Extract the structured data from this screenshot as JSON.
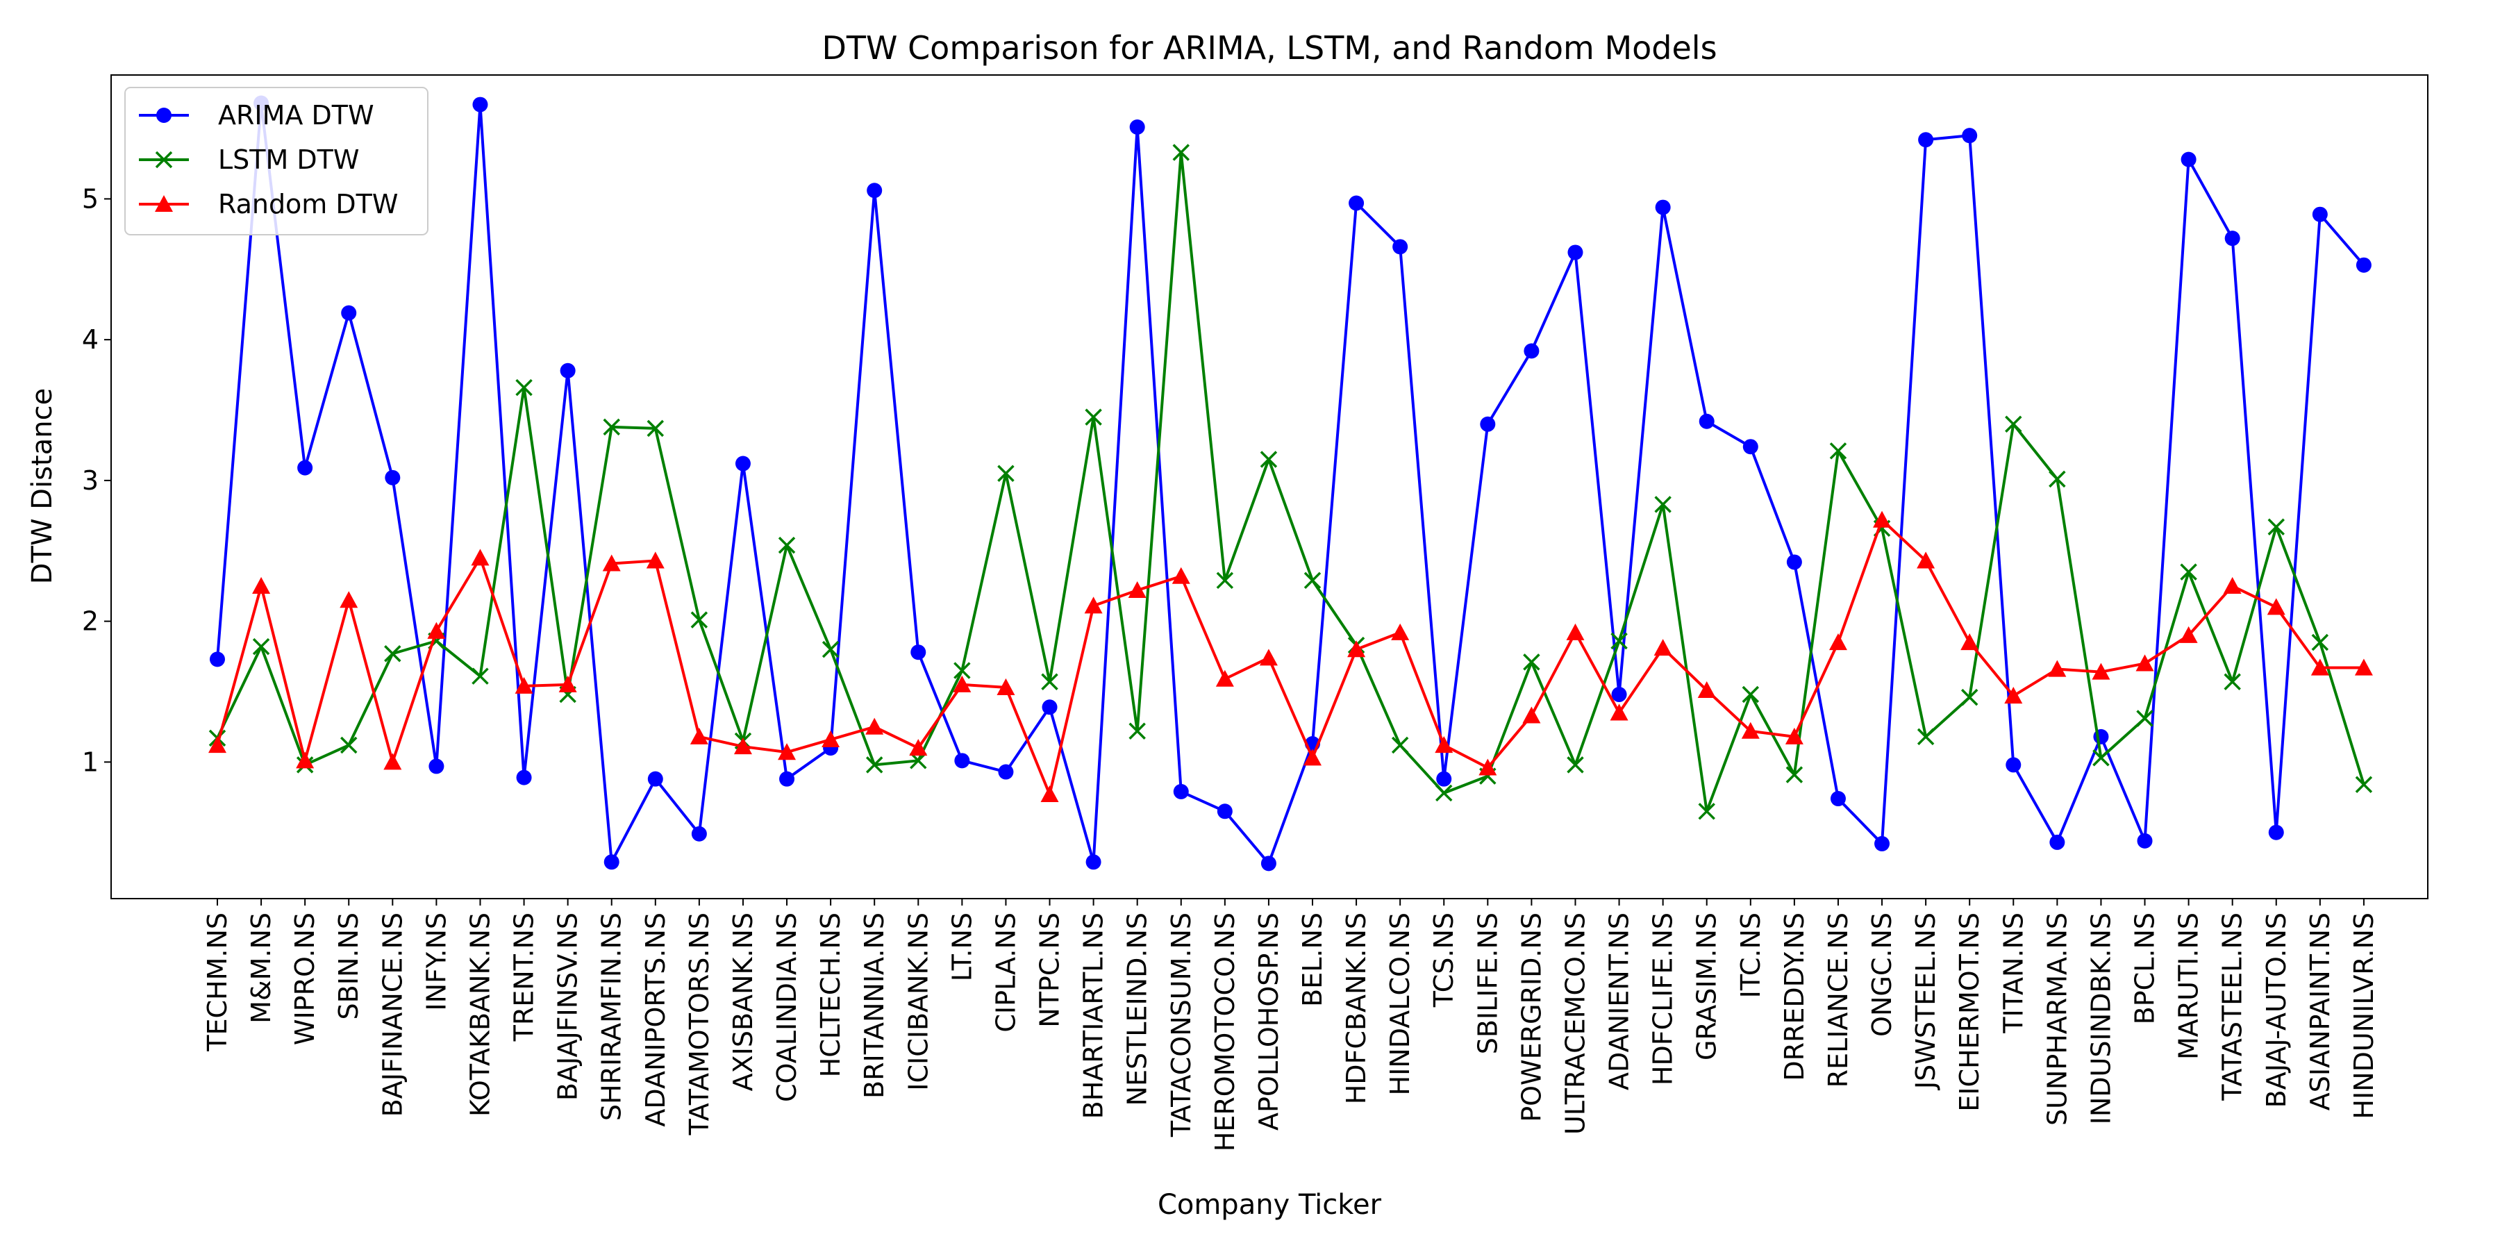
{
  "chart_data": {
    "type": "line",
    "title": "DTW Comparison for ARIMA, LSTM, and Random Models",
    "xlabel": "Company Ticker",
    "ylabel": "DTW Distance",
    "ylim": [
      0.03,
      5.88
    ],
    "yticks": [
      1,
      2,
      3,
      4,
      5
    ],
    "grid": false,
    "legend_position": "top-left",
    "categories": [
      "TECHM.NS",
      "M&M.NS",
      "WIPRO.NS",
      "SBIN.NS",
      "BAJFINANCE.NS",
      "INFY.NS",
      "KOTAKBANK.NS",
      "TRENT.NS",
      "BAJAJFINSV.NS",
      "SHRIRAMFIN.NS",
      "ADANIPORTS.NS",
      "TATAMOTORS.NS",
      "AXISBANK.NS",
      "COALINDIA.NS",
      "HCLTECH.NS",
      "BRITANNIA.NS",
      "ICICIBANK.NS",
      "LT.NS",
      "CIPLA.NS",
      "NTPC.NS",
      "BHARTIARTL.NS",
      "NESTLEIND.NS",
      "TATACONSUM.NS",
      "HEROMOTOCO.NS",
      "APOLLOHOSP.NS",
      "BEL.NS",
      "HDFCBANK.NS",
      "HINDALCO.NS",
      "TCS.NS",
      "SBILIFE.NS",
      "POWERGRID.NS",
      "ULTRACEMCO.NS",
      "ADANIENT.NS",
      "HDFCLIFE.NS",
      "GRASIM.NS",
      "ITC.NS",
      "DRREDDY.NS",
      "RELIANCE.NS",
      "ONGC.NS",
      "JSWSTEEL.NS",
      "EICHERMOT.NS",
      "TITAN.NS",
      "SUNPHARMA.NS",
      "INDUSINDBK.NS",
      "BPCL.NS",
      "MARUTI.NS",
      "TATASTEEL.NS",
      "BAJAJ-AUTO.NS",
      "ASIANPAINT.NS",
      "HINDUNILVR.NS"
    ],
    "series": [
      {
        "name": "ARIMA DTW",
        "color": "#0000ff",
        "marker": "circle",
        "values": [
          1.73,
          5.68,
          3.09,
          4.19,
          3.02,
          0.97,
          5.67,
          0.89,
          3.78,
          0.29,
          0.88,
          0.49,
          3.12,
          0.88,
          1.1,
          5.06,
          1.78,
          1.01,
          0.93,
          1.39,
          0.29,
          5.51,
          0.79,
          0.65,
          0.28,
          1.13,
          4.97,
          4.66,
          0.88,
          3.4,
          3.92,
          4.62,
          1.48,
          4.94,
          3.42,
          3.24,
          2.42,
          0.74,
          0.42,
          5.42,
          5.45,
          0.98,
          0.43,
          1.18,
          0.44,
          5.28,
          4.72,
          0.5,
          4.89,
          4.53
        ]
      },
      {
        "name": "LSTM DTW",
        "color": "#008000",
        "marker": "x",
        "values": [
          1.17,
          1.82,
          0.98,
          1.12,
          1.77,
          1.86,
          1.61,
          3.66,
          1.48,
          3.38,
          3.37,
          2.01,
          1.15,
          2.54,
          1.8,
          0.98,
          1.01,
          1.65,
          3.05,
          1.57,
          3.45,
          1.22,
          5.33,
          2.29,
          3.15,
          2.29,
          1.83,
          1.12,
          0.78,
          0.9,
          1.71,
          0.98,
          1.86,
          2.83,
          0.65,
          1.48,
          0.91,
          3.21,
          2.66,
          1.18,
          1.46,
          3.4,
          3.01,
          1.03,
          1.31,
          2.35,
          1.57,
          2.67,
          1.85,
          0.84
        ]
      },
      {
        "name": "Random DTW",
        "color": "#ff0000",
        "marker": "triangle",
        "values": [
          1.12,
          2.25,
          1.01,
          2.15,
          1.0,
          1.93,
          2.45,
          1.54,
          1.55,
          2.41,
          2.43,
          1.18,
          1.11,
          1.07,
          1.16,
          1.25,
          1.1,
          1.55,
          1.53,
          0.77,
          2.11,
          2.22,
          2.32,
          1.59,
          1.74,
          1.03,
          1.8,
          1.92,
          1.12,
          0.96,
          1.33,
          1.92,
          1.35,
          1.81,
          1.51,
          1.22,
          1.18,
          1.85,
          2.72,
          2.43,
          1.85,
          1.47,
          1.66,
          1.64,
          1.7,
          1.9,
          2.25,
          2.1,
          1.67,
          1.67
        ]
      }
    ]
  }
}
